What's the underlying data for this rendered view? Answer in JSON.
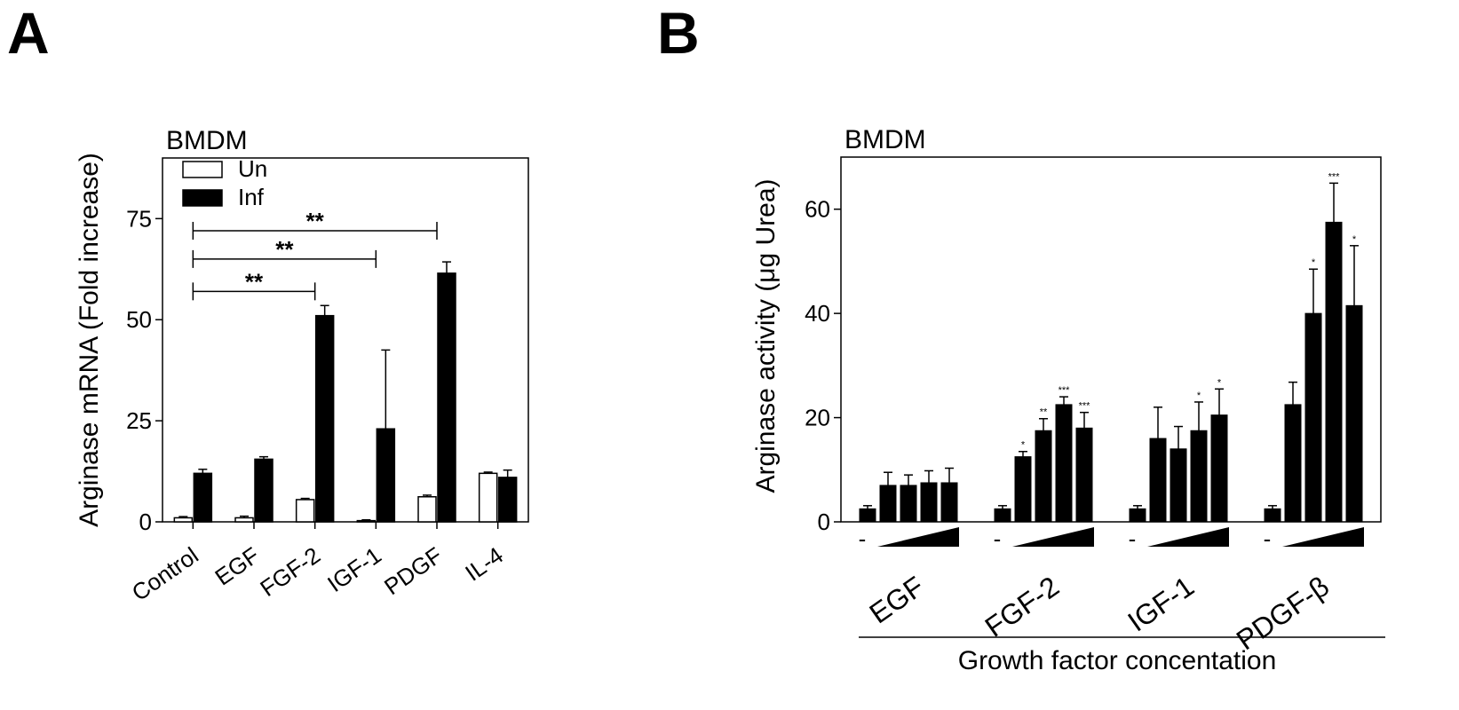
{
  "chart_data": [
    {
      "panel": "A",
      "type": "bar",
      "title": "BMDM",
      "ylabel": "Arginase mRNA (Fold increase)",
      "xlabel": "",
      "ylim": [
        0,
        90
      ],
      "yticks": [
        0,
        25,
        50,
        75
      ],
      "categories": [
        "Control",
        "EGF",
        "FGF-2",
        "IGF-1",
        "PDGF",
        "IL-4"
      ],
      "series": [
        {
          "name": "Un",
          "color": "#ffffff",
          "values": [
            1.0,
            1.0,
            5.5,
            0.3,
            6.2,
            12.0
          ],
          "errors": [
            0.3,
            0.4,
            0.3,
            0.2,
            0.4,
            0.3
          ]
        },
        {
          "name": "Inf",
          "color": "#000000",
          "values": [
            12.0,
            15.5,
            51.0,
            23.0,
            61.5,
            11.0
          ],
          "errors": [
            1.0,
            0.6,
            2.5,
            19.5,
            2.8,
            1.8
          ]
        }
      ],
      "legend": "top-left",
      "grid": false,
      "annotations": [
        {
          "from": "Control",
          "to": "FGF-2",
          "y": 57,
          "label": "**"
        },
        {
          "from": "Control",
          "to": "IGF-1",
          "y": 65,
          "label": "**"
        },
        {
          "from": "Control",
          "to": "PDGF",
          "y": 72,
          "label": "**"
        }
      ]
    },
    {
      "panel": "B",
      "type": "bar",
      "title": "BMDM",
      "ylabel": "Arginase activity (μg Urea)",
      "xlabel": "Growth factor concentation",
      "ylim": [
        0,
        70
      ],
      "yticks": [
        0,
        20,
        40,
        60
      ],
      "groups": [
        "EGF",
        "FGF-2",
        "IGF-1",
        "PDGF-β"
      ],
      "untreated_marker": "-",
      "series": [
        {
          "group": "EGF",
          "values": [
            2.5,
            7.0,
            7.0,
            7.5,
            7.5
          ],
          "errors": [
            0.6,
            2.5,
            2.0,
            2.3,
            2.8
          ],
          "stars": [
            "",
            "",
            "",
            "",
            ""
          ]
        },
        {
          "group": "FGF-2",
          "values": [
            2.5,
            12.5,
            17.5,
            22.5,
            18.0
          ],
          "errors": [
            0.6,
            1.0,
            2.3,
            1.5,
            3.0
          ],
          "stars": [
            "",
            "*",
            "**",
            "***",
            "***"
          ]
        },
        {
          "group": "IGF-1",
          "values": [
            2.5,
            16.0,
            14.0,
            17.5,
            20.5
          ],
          "errors": [
            0.6,
            6.0,
            4.3,
            5.5,
            5.0
          ],
          "stars": [
            "",
            "",
            "",
            "*",
            "*"
          ]
        },
        {
          "group": "PDGF-β",
          "values": [
            2.5,
            22.5,
            40.0,
            57.5,
            41.5
          ],
          "errors": [
            0.6,
            4.3,
            8.5,
            7.5,
            11.5
          ],
          "stars": [
            "",
            "",
            "*",
            "***",
            "*"
          ]
        }
      ],
      "color": "#000000",
      "grid": false
    }
  ]
}
